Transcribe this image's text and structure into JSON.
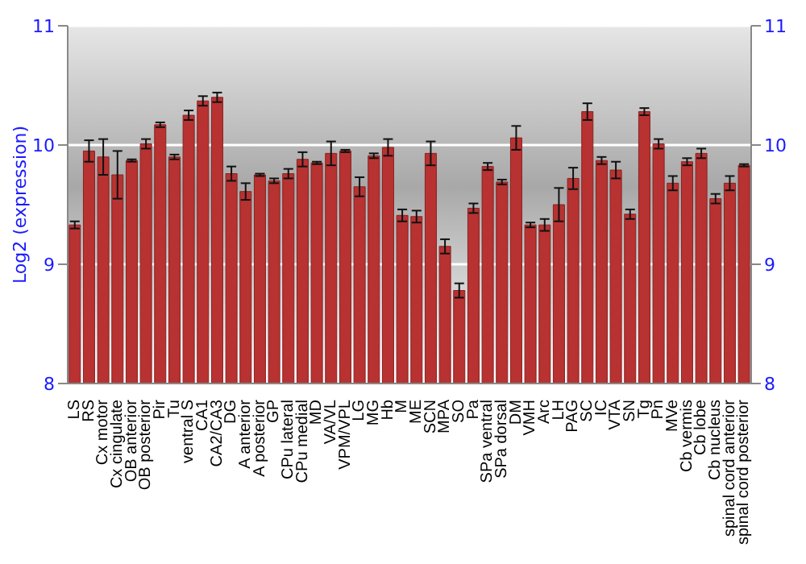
{
  "chart_data": {
    "type": "bar",
    "ylabel": "Log2 (expression)",
    "categories": [
      "LS",
      "RS",
      "Cx motor",
      "Cx cingulate",
      "OB anterior",
      "OB posterior",
      "Pir",
      "Tu",
      "ventral S",
      "CA1",
      "CA2/CA3",
      "DG",
      "A anterior",
      "A posterior",
      "GP",
      "CPu lateral",
      "CPu medial",
      "MD",
      "VA/VL",
      "VPM/VPL",
      "LG",
      "MG",
      "Hb",
      "M",
      "ME",
      "SCN",
      "MPA",
      "SO",
      "Pa",
      "SPa ventral",
      "SPa dorsal",
      "DM",
      "VMH",
      "Arc",
      "LH",
      "PAG",
      "SC",
      "IC",
      "VTA",
      "SN",
      "Tg",
      "Pn",
      "MVe",
      "Cb vermis",
      "Cb lobe",
      "Cb nucleus",
      "spinal cord anterior",
      "spinal cord posterior"
    ],
    "values": [
      9.33,
      9.95,
      9.9,
      9.75,
      9.87,
      10.01,
      10.17,
      9.9,
      10.25,
      10.37,
      10.4,
      9.76,
      9.61,
      9.75,
      9.7,
      9.76,
      9.88,
      9.85,
      9.93,
      9.95,
      9.65,
      9.91,
      9.98,
      9.41,
      9.4,
      9.93,
      9.15,
      8.78,
      9.47,
      9.82,
      9.69,
      10.06,
      9.33,
      9.33,
      9.5,
      9.72,
      10.28,
      9.87,
      9.79,
      9.42,
      10.28,
      10.01,
      9.68,
      9.86,
      9.93,
      9.55,
      9.68,
      9.83
    ],
    "errors": [
      0.03,
      0.09,
      0.15,
      0.2,
      0.01,
      0.04,
      0.02,
      0.02,
      0.04,
      0.04,
      0.04,
      0.06,
      0.07,
      0.01,
      0.02,
      0.04,
      0.06,
      0.01,
      0.1,
      0.01,
      0.08,
      0.02,
      0.07,
      0.05,
      0.05,
      0.1,
      0.06,
      0.06,
      0.04,
      0.03,
      0.02,
      0.1,
      0.02,
      0.05,
      0.14,
      0.09,
      0.07,
      0.03,
      0.07,
      0.04,
      0.03,
      0.04,
      0.06,
      0.03,
      0.04,
      0.04,
      0.06,
      0.01
    ],
    "color": "#b83232",
    "ylim": [
      8,
      11
    ],
    "yticks": [
      8,
      9,
      10,
      11
    ],
    "y2lim": [
      8,
      11
    ],
    "y2ticks": [
      8,
      9,
      10,
      11
    ],
    "grid": "y"
  }
}
